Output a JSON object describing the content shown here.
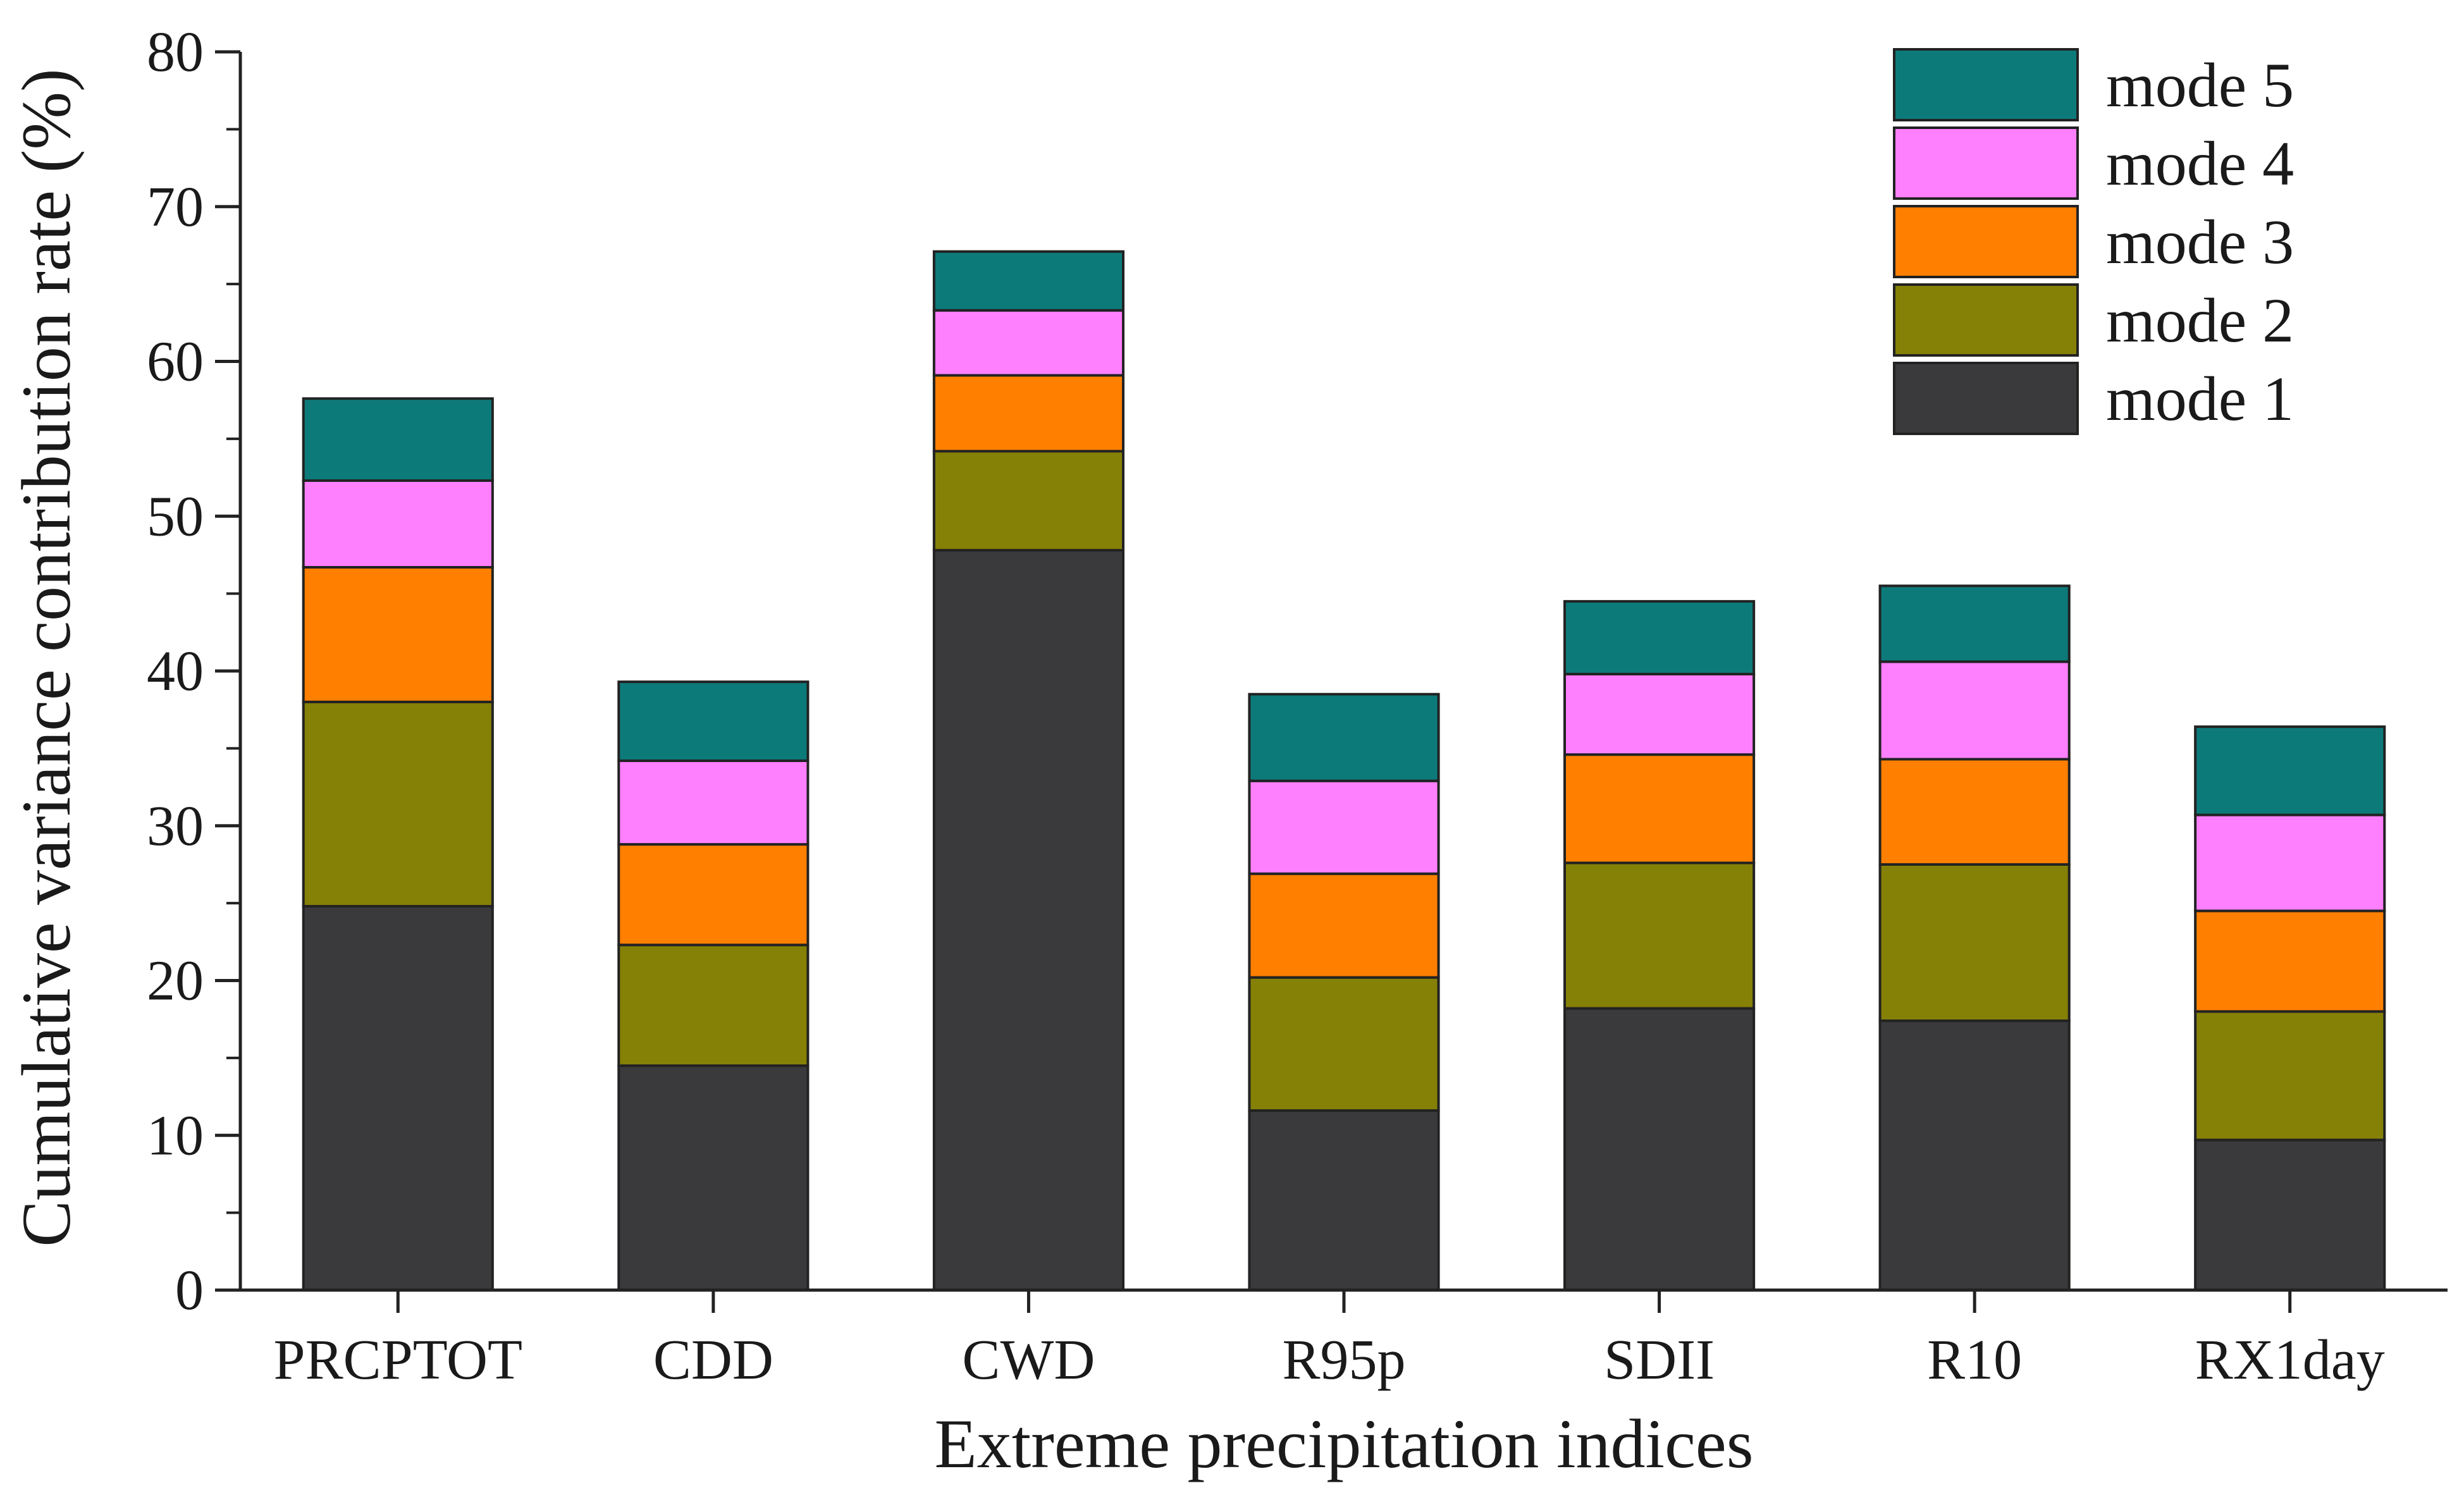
{
  "chart_data": {
    "type": "bar",
    "stacked": true,
    "title": "",
    "xlabel": "Extreme precipitation indices",
    "ylabel": "Cumulative variance contribution rate (%)",
    "ylim": [
      0,
      80
    ],
    "yticks": [
      0,
      10,
      20,
      30,
      40,
      50,
      60,
      70,
      80
    ],
    "grid": false,
    "legend_position": "top-right",
    "categories": [
      "PRCPTOT",
      "CDD",
      "CWD",
      "R95p",
      "SDII",
      "R10",
      "RX1day"
    ],
    "series": [
      {
        "name": "mode 1",
        "color": "#3a3a3d",
        "values": [
          24.8,
          14.5,
          47.8,
          11.6,
          18.2,
          17.4,
          9.7
        ]
      },
      {
        "name": "mode 2",
        "color": "#858006",
        "values": [
          13.2,
          7.8,
          6.4,
          8.6,
          9.4,
          10.1,
          8.3
        ]
      },
      {
        "name": "mode 3",
        "color": "#ff7f00",
        "values": [
          8.7,
          6.5,
          4.9,
          6.7,
          7.0,
          6.8,
          6.5
        ]
      },
      {
        "name": "mode 4",
        "color": "#ff80ff",
        "values": [
          5.6,
          5.4,
          4.2,
          6.0,
          5.2,
          6.3,
          6.2
        ]
      },
      {
        "name": "mode 5",
        "color": "#0d7a7a",
        "values": [
          5.3,
          5.1,
          3.8,
          5.6,
          4.7,
          4.9,
          5.7
        ]
      }
    ]
  }
}
